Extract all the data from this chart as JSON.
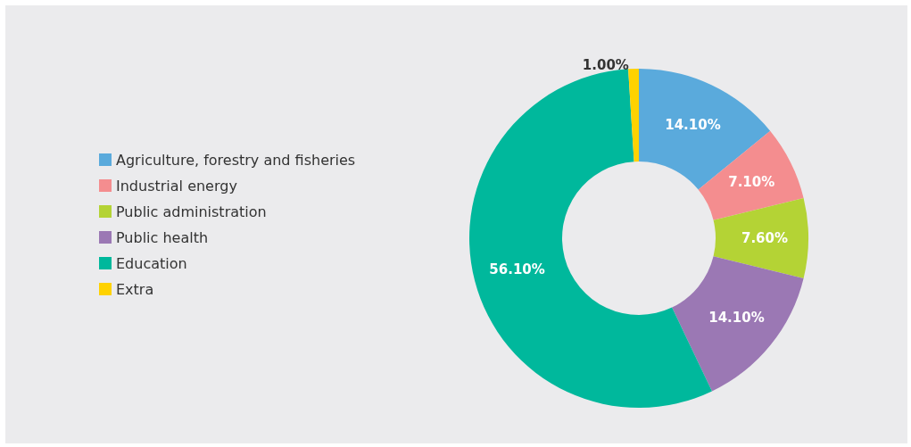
{
  "chart_data": {
    "type": "donut",
    "categories": [
      "Agriculture, forestry and fisheries",
      "Industrial energy",
      "Public administration",
      "Public health",
      "Education",
      "Extra"
    ],
    "values": [
      14.1,
      7.1,
      7.6,
      14.1,
      56.1,
      1.0
    ],
    "colors": [
      "#5aaadc",
      "#f48d8f",
      "#b4d335",
      "#9b78b4",
      "#00b89c",
      "#ffd200"
    ],
    "value_labels": [
      "14.10%",
      "7.10%",
      "7.60%",
      "14.10%",
      "56.10%",
      "1.00%"
    ],
    "legend": "left"
  }
}
